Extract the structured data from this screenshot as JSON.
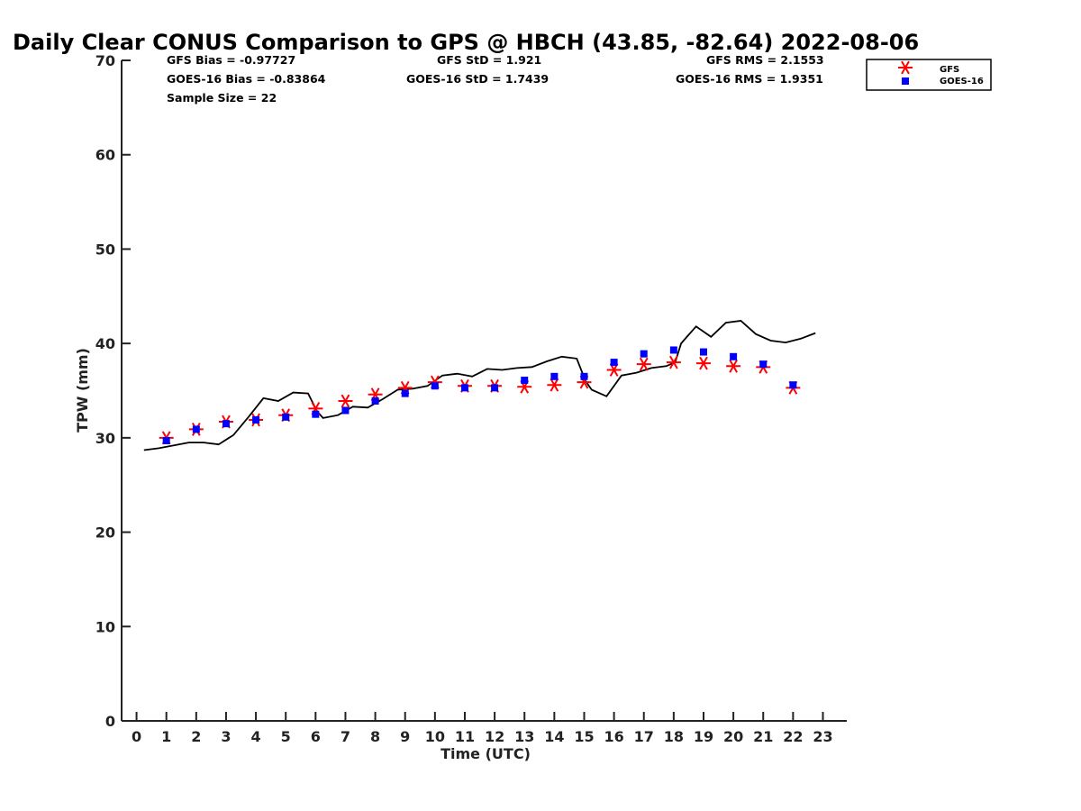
{
  "chart_data": {
    "type": "scatter",
    "title": "Daily Clear CONUS Comparison to GPS @ HBCH (43.85, -82.64) 2022-08-06",
    "xlabel": "Time (UTC)",
    "ylabel": "TPW (mm)",
    "xlim": [
      -0.5,
      23.8
    ],
    "ylim": [
      0,
      70
    ],
    "x_ticks": [
      "0",
      "1",
      "2",
      "3",
      "4",
      "5",
      "6",
      "7",
      "8",
      "9",
      "10",
      "11",
      "12",
      "13",
      "14",
      "15",
      "16",
      "17",
      "18",
      "19",
      "20",
      "21",
      "22",
      "23"
    ],
    "y_ticks": [
      "0",
      "10",
      "20",
      "30",
      "40",
      "50",
      "60",
      "70"
    ],
    "grid": false,
    "legend_position": "top-right",
    "stats": {
      "gfs_bias": "GFS Bias = -0.97727",
      "goes_bias": "GOES-16 Bias = -0.83864",
      "sample_size": "Sample Size = 22",
      "gfs_std": "GFS StD = 1.921",
      "goes_std": "GOES-16 StD = 1.7439",
      "gfs_rms": "GFS RMS = 2.1553",
      "goes_rms": "GOES-16 RMS = 1.9351"
    },
    "series": [
      {
        "name": "GFS",
        "marker": "asterisk",
        "color": "#ff0000",
        "x": [
          1,
          2,
          3,
          4,
          5,
          6,
          7,
          8,
          9,
          10,
          11,
          12,
          13,
          14,
          15,
          16,
          17,
          18,
          19,
          20,
          21,
          22
        ],
        "y": [
          30.0,
          30.9,
          31.7,
          31.9,
          32.4,
          33.1,
          33.9,
          34.6,
          35.3,
          35.9,
          35.5,
          35.5,
          35.4,
          35.6,
          35.9,
          37.2,
          37.8,
          38.0,
          37.9,
          37.6,
          37.5,
          35.3
        ]
      },
      {
        "name": "GOES-16",
        "marker": "square",
        "color": "#0000ff",
        "x": [
          1,
          2,
          3,
          4,
          5,
          6,
          7,
          8,
          9,
          10,
          11,
          12,
          13,
          14,
          15,
          16,
          17,
          18,
          19,
          20,
          21,
          22
        ],
        "y": [
          29.7,
          30.9,
          31.5,
          31.9,
          32.2,
          32.5,
          32.9,
          33.9,
          34.7,
          35.5,
          35.3,
          35.3,
          36.1,
          36.5,
          36.5,
          38.0,
          38.9,
          39.3,
          39.1,
          38.6,
          37.8,
          35.6
        ]
      },
      {
        "name": "GPS",
        "marker": "line",
        "color": "#000000",
        "x": [
          0.25,
          0.75,
          1.25,
          1.75,
          2.25,
          2.75,
          3.25,
          3.75,
          4.25,
          4.75,
          5.25,
          5.75,
          6.05,
          6.25,
          6.75,
          7.25,
          7.75,
          8.25,
          8.75,
          9.25,
          9.75,
          10.25,
          10.75,
          11.25,
          11.75,
          12.25,
          12.75,
          13.25,
          13.75,
          14.25,
          14.75,
          15.05,
          15.25,
          15.75,
          16.25,
          16.75,
          17.25,
          17.75,
          18.05,
          18.25,
          18.75,
          19.25,
          19.75,
          20.25,
          20.75,
          21.25,
          21.75,
          22.25,
          22.75
        ],
        "y": [
          28.7,
          28.9,
          29.2,
          29.5,
          29.5,
          29.3,
          30.3,
          32.2,
          34.2,
          33.9,
          34.8,
          34.7,
          32.8,
          32.1,
          32.4,
          33.3,
          33.2,
          34.1,
          35.1,
          35.2,
          35.5,
          36.6,
          36.8,
          36.5,
          37.3,
          37.2,
          37.4,
          37.5,
          38.1,
          38.6,
          38.4,
          36.0,
          35.1,
          34.4,
          36.6,
          36.9,
          37.4,
          37.6,
          38.0,
          40.0,
          41.8,
          40.7,
          42.2,
          42.4,
          41.0,
          40.3,
          40.1,
          40.5,
          41.1
        ]
      }
    ]
  }
}
